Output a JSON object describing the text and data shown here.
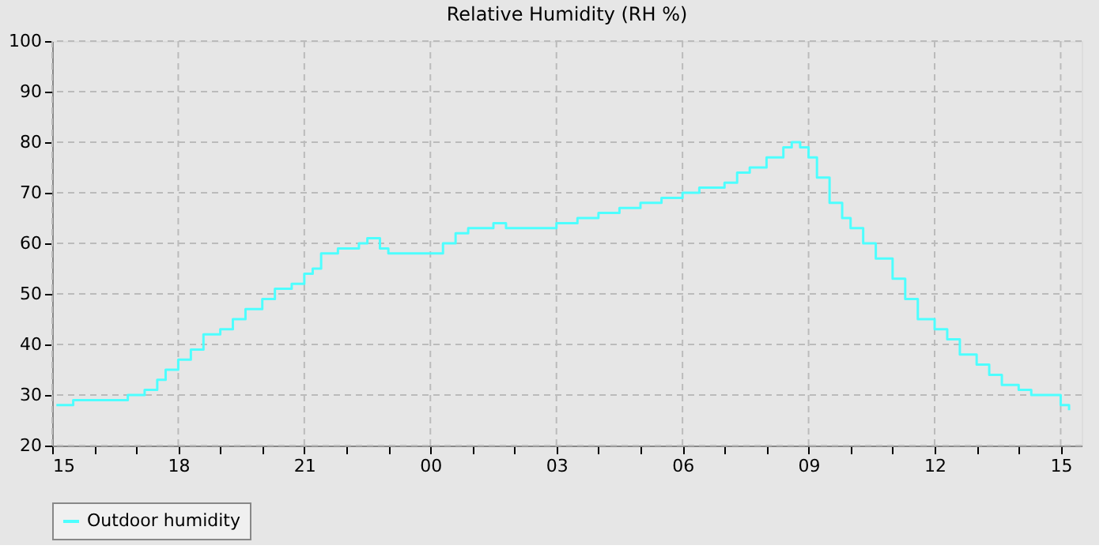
{
  "chart_data": {
    "type": "step",
    "title": "Relative Humidity (RH %)",
    "xlim": [
      15,
      39.5
    ],
    "ylim": [
      20,
      100
    ],
    "yticks": [
      20,
      30,
      40,
      50,
      60,
      70,
      80,
      90,
      100
    ],
    "xticks": [
      {
        "value": 15,
        "label": "15"
      },
      {
        "value": 16,
        "label": null
      },
      {
        "value": 17,
        "label": null
      },
      {
        "value": 18,
        "label": "18"
      },
      {
        "value": 19,
        "label": null
      },
      {
        "value": 20,
        "label": null
      },
      {
        "value": 21,
        "label": "21"
      },
      {
        "value": 22,
        "label": null
      },
      {
        "value": 23,
        "label": null
      },
      {
        "value": 24,
        "label": "00"
      },
      {
        "value": 25,
        "label": null
      },
      {
        "value": 26,
        "label": null
      },
      {
        "value": 27,
        "label": "03"
      },
      {
        "value": 28,
        "label": null
      },
      {
        "value": 29,
        "label": null
      },
      {
        "value": 30,
        "label": "06"
      },
      {
        "value": 31,
        "label": null
      },
      {
        "value": 32,
        "label": null
      },
      {
        "value": 33,
        "label": "09"
      },
      {
        "value": 34,
        "label": null
      },
      {
        "value": 35,
        "label": null
      },
      {
        "value": 36,
        "label": "12"
      },
      {
        "value": 37,
        "label": null
      },
      {
        "value": 38,
        "label": null
      },
      {
        "value": 39,
        "label": "15"
      }
    ],
    "grid": true,
    "legend": "bottom",
    "line_style": "solid",
    "marker": "none",
    "series": [
      {
        "name": "Outdoor humidity",
        "color": "#4dffff",
        "x": [
          15.1,
          15.5,
          16.0,
          16.5,
          16.8,
          17.2,
          17.5,
          17.7,
          18.0,
          18.3,
          18.6,
          19.0,
          19.3,
          19.6,
          20.0,
          20.3,
          20.7,
          21.0,
          21.2,
          21.4,
          21.8,
          22.3,
          22.5,
          22.8,
          23.0,
          24.0,
          24.3,
          24.6,
          24.9,
          25.2,
          25.5,
          25.8,
          26.2,
          26.5,
          27.0,
          27.5,
          28.0,
          28.5,
          29.0,
          29.5,
          30.0,
          30.4,
          30.8,
          31.0,
          31.3,
          31.6,
          32.0,
          32.4,
          32.6,
          32.8,
          33.0,
          33.2,
          33.5,
          33.8,
          34.0,
          34.3,
          34.6,
          35.0,
          35.3,
          35.6,
          36.0,
          36.3,
          36.6,
          37.0,
          37.3,
          37.6,
          38.0,
          38.3,
          38.6,
          38.8,
          39.0,
          39.2
        ],
        "values": [
          28,
          29,
          29,
          29,
          30,
          31,
          33,
          35,
          37,
          39,
          42,
          43,
          45,
          47,
          49,
          51,
          52,
          54,
          55,
          58,
          59,
          60,
          61,
          59,
          58,
          58,
          60,
          62,
          63,
          63,
          64,
          63,
          63,
          63,
          64,
          65,
          66,
          67,
          68,
          69,
          70,
          71,
          71,
          72,
          74,
          75,
          77,
          79,
          80,
          79,
          77,
          73,
          68,
          65,
          63,
          60,
          57,
          53,
          49,
          45,
          43,
          41,
          38,
          36,
          34,
          32,
          31,
          30,
          30,
          30,
          28,
          27
        ]
      }
    ]
  }
}
